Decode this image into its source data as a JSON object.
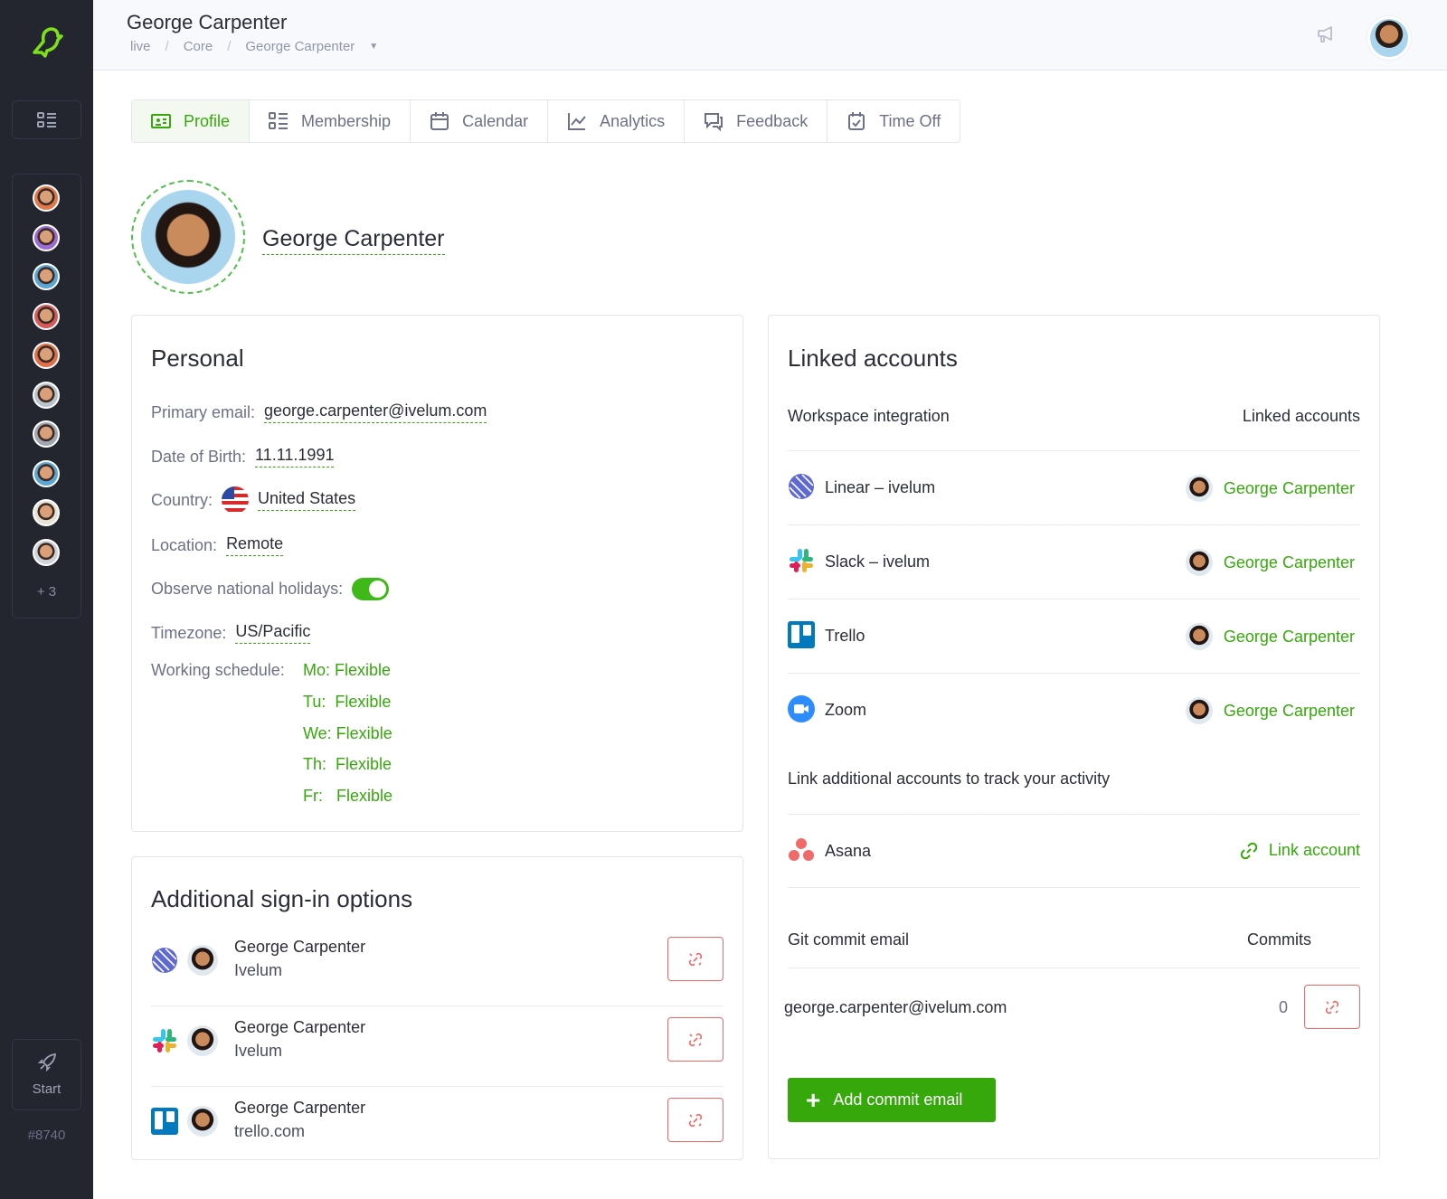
{
  "header": {
    "title": "George Carpenter",
    "breadcrumbs": [
      "live",
      "Core",
      "George Carpenter"
    ]
  },
  "sidebar": {
    "more": "+ 3",
    "start": "Start",
    "build": "#8740",
    "avatar_colors": [
      "#e07a4a",
      "#9b6bd6",
      "#5aa7d6",
      "#d65a5a",
      "#e0704a",
      "#b9c4cf",
      "#a0a7b3",
      "#5aa7d6",
      "#e8e1d8",
      "#cdd3da"
    ]
  },
  "tabs": [
    "Profile",
    "Membership",
    "Calendar",
    "Analytics",
    "Feedback",
    "Time Off"
  ],
  "profile": {
    "name": "George Carpenter"
  },
  "personal": {
    "title": "Personal",
    "email_label": "Primary email:",
    "email": "george.carpenter@ivelum.com",
    "dob_label": "Date of Birth:",
    "dob": "11.11.1991",
    "country_label": "Country:",
    "country": "United States",
    "location_label": "Location:",
    "location": "Remote",
    "holidays_label": "Observe national holidays:",
    "holidays_on": true,
    "tz_label": "Timezone:",
    "tz": "US/Pacific",
    "schedule_label": "Working schedule:",
    "schedule": [
      "Mo: Flexible",
      "Tu:  Flexible",
      "We: Flexible",
      "Th:  Flexible",
      "Fr:   Flexible"
    ]
  },
  "signin": {
    "title": "Additional sign-in options",
    "items": [
      {
        "icon": "linear",
        "name": "George Carpenter",
        "sub": "Ivelum"
      },
      {
        "icon": "slack",
        "name": "George Carpenter",
        "sub": "Ivelum"
      },
      {
        "icon": "trello",
        "name": "George Carpenter",
        "sub": "trello.com"
      }
    ]
  },
  "linked": {
    "title": "Linked accounts",
    "col1": "Workspace integration",
    "col2": "Linked accounts",
    "items": [
      {
        "icon": "linear",
        "name": "Linear – ivelum",
        "account": "George Carpenter"
      },
      {
        "icon": "slack",
        "name": "Slack – ivelum",
        "account": "George Carpenter"
      },
      {
        "icon": "trello",
        "name": "Trello",
        "account": "George Carpenter"
      },
      {
        "icon": "zoom",
        "name": "Zoom",
        "account": "George Carpenter"
      }
    ],
    "additional": "Link additional accounts to track your activity",
    "asana": {
      "name": "Asana",
      "action": "Link account"
    },
    "git_col1": "Git commit email",
    "git_col2": "Commits",
    "git": {
      "email": "george.carpenter@ivelum.com",
      "commits": "0"
    },
    "add_btn": "Add commit email"
  },
  "colors": {
    "accent": "#36a80c",
    "danger": "#ef6767",
    "sidebar": "#23252f"
  }
}
